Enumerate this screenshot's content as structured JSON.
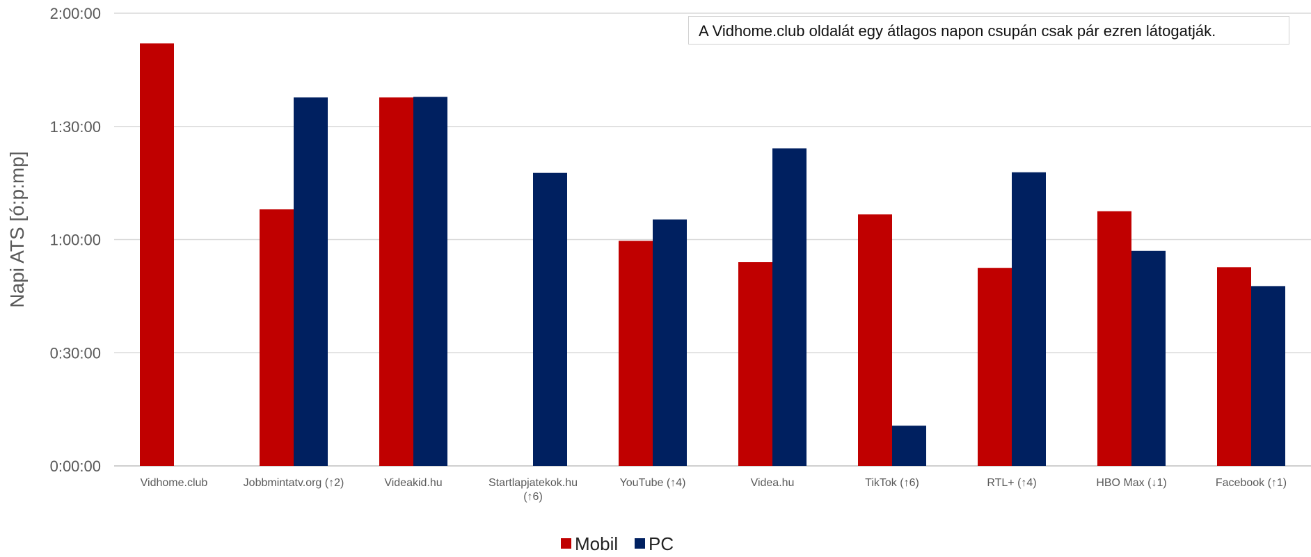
{
  "chart_data": {
    "type": "bar",
    "ylabel": "Napi ATS [ó:p:mp]",
    "ylim_seconds": [
      0,
      7200
    ],
    "yticks": [
      {
        "label": "2:00:00",
        "value": 7200
      },
      {
        "label": "1:30:00",
        "value": 5400
      },
      {
        "label": "1:00:00",
        "value": 3600
      },
      {
        "label": "0:30:00",
        "value": 1800
      },
      {
        "label": "0:00:00",
        "value": 0
      }
    ],
    "grid": true,
    "legend_position": "bottom-center",
    "categories": [
      [
        "Vidhome.club"
      ],
      [
        "Jobbmintatv.org (↑2)"
      ],
      [
        "Videakid.hu"
      ],
      [
        "Startlapjatekok.hu",
        "(↑6)"
      ],
      [
        "YouTube (↑4)"
      ],
      [
        "Videa.hu"
      ],
      [
        "TikTok (↑6)"
      ],
      [
        "RTL+ (↑4)"
      ],
      [
        "HBO Max (↓1)"
      ],
      [
        "Facebook (↑1)"
      ]
    ],
    "series": [
      {
        "name": "Mobil",
        "color": "#c00000",
        "values": [
          6720,
          4080,
          5860,
          null,
          3580,
          3240,
          4000,
          3150,
          4050,
          3160
        ]
      },
      {
        "name": "PC",
        "color": "#002060",
        "values": [
          null,
          5860,
          5870,
          4660,
          3920,
          5050,
          640,
          4670,
          3420,
          2860
        ]
      }
    ],
    "annotation": "A Vidhome.club oldalát egy átlagos napon csupán csak pár ezren látogatják."
  }
}
